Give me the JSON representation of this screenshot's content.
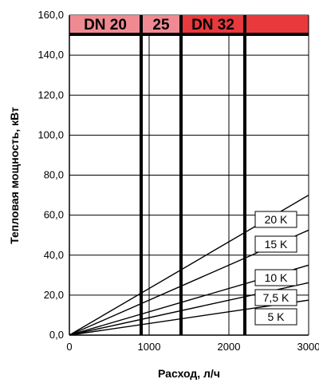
{
  "chart_data": {
    "type": "line",
    "xlabel": "Расход, л/ч",
    "ylabel": "Тепловая мощность, кВт",
    "xlim": [
      0,
      3000
    ],
    "ylim": [
      0,
      160
    ],
    "x_ticks": [
      "0",
      "1000",
      "2000",
      "3000"
    ],
    "y_ticks": [
      "0,0",
      "20,0",
      "40,0",
      "60,0",
      "80,0",
      "100,0",
      "120,0",
      "140,0",
      "160,0"
    ],
    "grid": true,
    "series": [
      {
        "name": "5 K",
        "x": [
          0,
          3000
        ],
        "y": [
          0,
          17.5
        ]
      },
      {
        "name": "7,5 K",
        "x": [
          0,
          3000
        ],
        "y": [
          0,
          26.2
        ]
      },
      {
        "name": "10 K",
        "x": [
          0,
          3000
        ],
        "y": [
          0,
          35.0
        ]
      },
      {
        "name": "15 K",
        "x": [
          0,
          3000
        ],
        "y": [
          0,
          52.5
        ]
      },
      {
        "name": "20 K",
        "x": [
          0,
          3000
        ],
        "y": [
          0,
          70.0
        ]
      }
    ],
    "size_boundaries": [
      900,
      1400,
      2200
    ],
    "size_bands": [
      {
        "label": "DN 20",
        "from": 0,
        "to": 900,
        "color": "#f08a92"
      },
      {
        "label": "25",
        "from": 900,
        "to": 1400,
        "color": "#f08a92"
      },
      {
        "label": "DN 32",
        "from": 1400,
        "to": 2200,
        "color": "#e8393c"
      },
      {
        "label": "",
        "from": 2200,
        "to": 3000,
        "color": "#e8393c"
      }
    ]
  }
}
